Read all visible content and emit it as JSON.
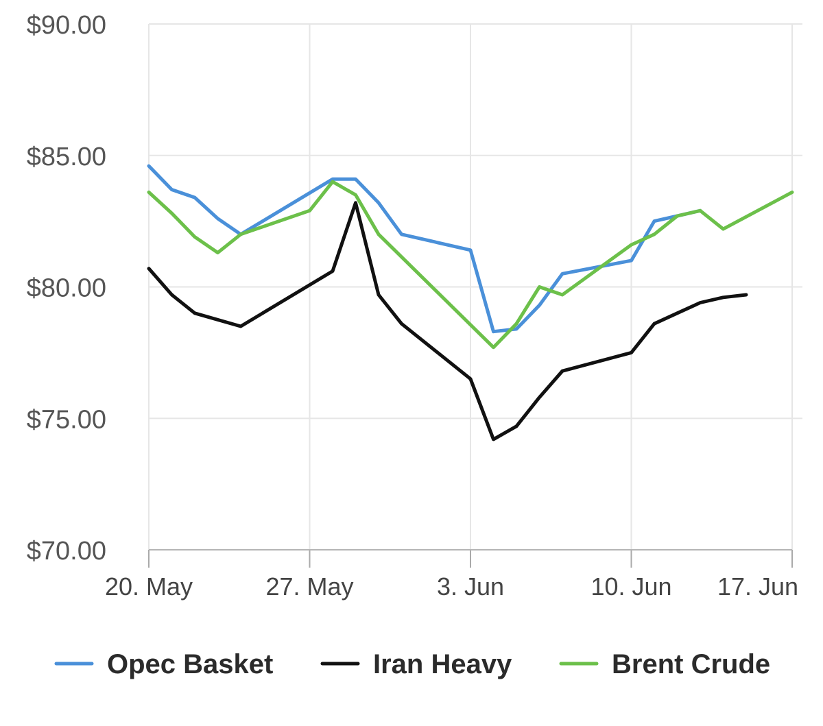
{
  "chart_data": {
    "type": "line",
    "title": "",
    "xlabel": "",
    "ylabel": "",
    "ylim": [
      70,
      90
    ],
    "yticks": [
      "$90.00",
      "$85.00",
      "$80.00",
      "$75.00",
      "$70.00"
    ],
    "ytick_values": [
      90,
      85,
      80,
      75,
      70
    ],
    "xlim": [
      "2019-05-20",
      "2019-06-17"
    ],
    "xticks": [
      "20. May",
      "27. May",
      "3. Jun",
      "10. Jun",
      "17. Jun"
    ],
    "xtick_dates": [
      "2019-05-20",
      "2019-05-27",
      "2019-06-03",
      "2019-06-10",
      "2019-06-17"
    ],
    "grid": true,
    "legend_position": "bottom",
    "series": [
      {
        "name": "Opec Basket",
        "color": "#4a90d9",
        "x": [
          "2019-05-20",
          "2019-05-21",
          "2019-05-22",
          "2019-05-23",
          "2019-05-24",
          "2019-05-28",
          "2019-05-29",
          "2019-05-30",
          "2019-05-31",
          "2019-06-03",
          "2019-06-04",
          "2019-06-05",
          "2019-06-06",
          "2019-06-07",
          "2019-06-10",
          "2019-06-11",
          "2019-06-12",
          "2019-06-13"
        ],
        "values": [
          84.6,
          83.7,
          83.4,
          82.6,
          82.0,
          84.1,
          84.1,
          83.2,
          82.0,
          81.4,
          78.3,
          78.4,
          79.3,
          80.5,
          81.0,
          82.5,
          82.7,
          82.9
        ]
      },
      {
        "name": "Iran Heavy",
        "color": "#111111",
        "x": [
          "2019-05-20",
          "2019-05-21",
          "2019-05-22",
          "2019-05-24",
          "2019-05-28",
          "2019-05-29",
          "2019-05-30",
          "2019-05-31",
          "2019-06-03",
          "2019-06-04",
          "2019-06-05",
          "2019-06-06",
          "2019-06-07",
          "2019-06-10",
          "2019-06-11",
          "2019-06-12",
          "2019-06-13",
          "2019-06-14",
          "2019-06-15"
        ],
        "values": [
          80.7,
          79.7,
          79.0,
          78.5,
          80.6,
          83.2,
          79.7,
          78.6,
          76.5,
          74.2,
          74.7,
          75.8,
          76.8,
          77.5,
          78.6,
          79.0,
          79.4,
          79.6,
          79.7
        ]
      },
      {
        "name": "Brent Crude",
        "color": "#6cc04a",
        "x": [
          "2019-05-20",
          "2019-05-21",
          "2019-05-22",
          "2019-05-23",
          "2019-05-24",
          "2019-05-27",
          "2019-05-28",
          "2019-05-29",
          "2019-05-30",
          "2019-06-04",
          "2019-06-05",
          "2019-06-06",
          "2019-06-07",
          "2019-06-10",
          "2019-06-11",
          "2019-06-12",
          "2019-06-13",
          "2019-06-14",
          "2019-06-17"
        ],
        "values": [
          83.6,
          82.8,
          81.9,
          81.3,
          82.0,
          82.9,
          84.0,
          83.5,
          82.0,
          77.7,
          78.6,
          80.0,
          79.7,
          81.6,
          82.0,
          82.7,
          82.9,
          82.2,
          83.6
        ]
      }
    ]
  }
}
